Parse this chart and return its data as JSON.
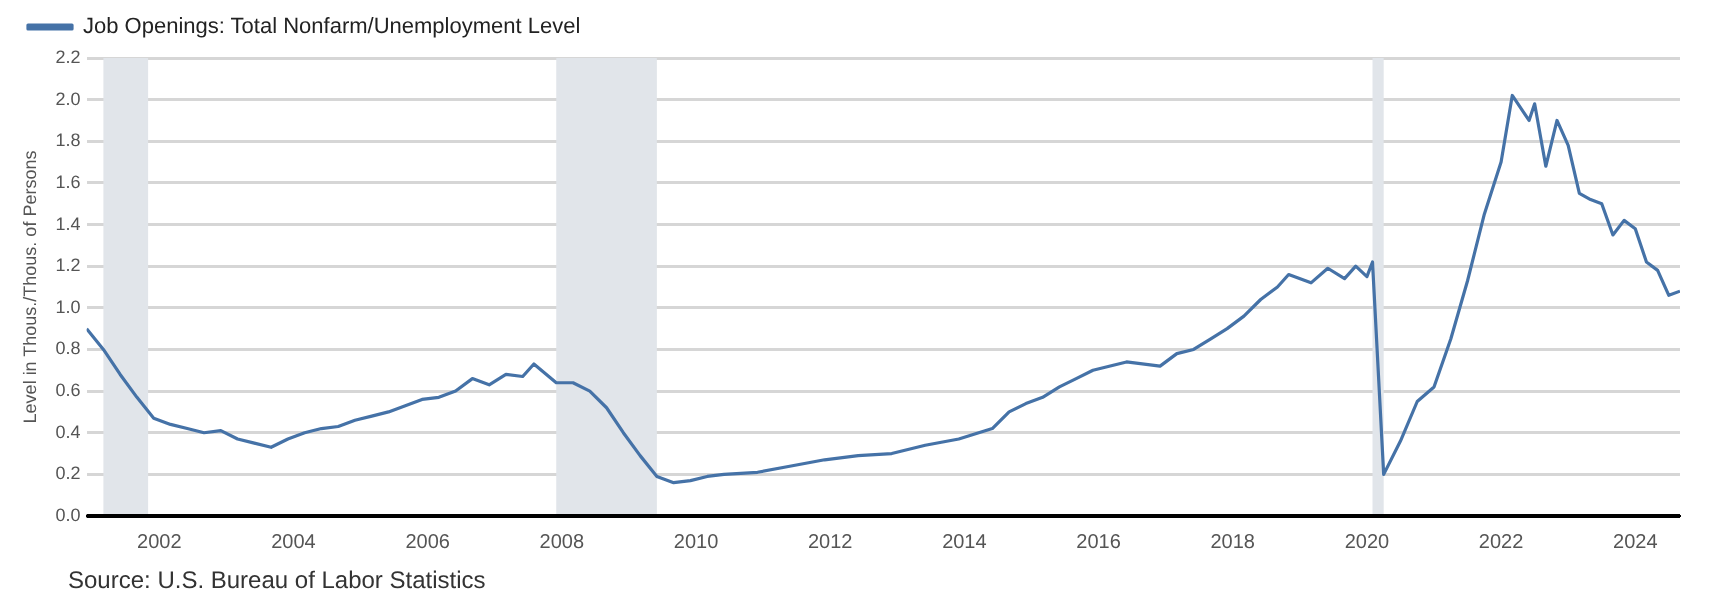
{
  "chart_data": {
    "type": "line",
    "ylabel": "Level in Thous./Thous. of Persons",
    "x": [
      "2000-12",
      "2001-03",
      "2001-06",
      "2001-09",
      "2001-12",
      "2002-03",
      "2002-06",
      "2002-09",
      "2002-12",
      "2003-03",
      "2003-06",
      "2003-09",
      "2003-12",
      "2004-03",
      "2004-06",
      "2004-09",
      "2004-12",
      "2005-03",
      "2005-06",
      "2005-09",
      "2005-12",
      "2006-03",
      "2006-06",
      "2006-09",
      "2006-12",
      "2007-03",
      "2007-06",
      "2007-08",
      "2007-12",
      "2008-03",
      "2008-06",
      "2008-09",
      "2008-12",
      "2009-03",
      "2009-06",
      "2009-09",
      "2009-12",
      "2010-03",
      "2010-06",
      "2010-12",
      "2011-06",
      "2011-12",
      "2012-06",
      "2012-12",
      "2013-06",
      "2013-12",
      "2014-06",
      "2014-09",
      "2014-12",
      "2015-03",
      "2015-06",
      "2015-09",
      "2015-12",
      "2016-06",
      "2016-12",
      "2017-03",
      "2017-06",
      "2017-09",
      "2017-12",
      "2018-03",
      "2018-06",
      "2018-09",
      "2018-11",
      "2019-03",
      "2019-06",
      "2019-09",
      "2019-11",
      "2020-01",
      "2020-02",
      "2020-04",
      "2020-07",
      "2020-10",
      "2021-01",
      "2021-04",
      "2021-07",
      "2021-10",
      "2022-01",
      "2022-03",
      "2022-06",
      "2022-07",
      "2022-09",
      "2022-11",
      "2023-01",
      "2023-03",
      "2023-05",
      "2023-07",
      "2023-09",
      "2023-11",
      "2024-01",
      "2024-03",
      "2024-05",
      "2024-07",
      "2024-09"
    ],
    "series": [
      {
        "name": "Job Openings: Total Nonfarm/Unemployment Level",
        "color": "#4572a7",
        "values": [
          0.9,
          0.8,
          0.68,
          0.57,
          0.47,
          0.44,
          0.42,
          0.4,
          0.41,
          0.37,
          0.35,
          0.33,
          0.37,
          0.4,
          0.42,
          0.43,
          0.46,
          0.48,
          0.5,
          0.53,
          0.56,
          0.57,
          0.6,
          0.66,
          0.63,
          0.68,
          0.67,
          0.73,
          0.64,
          0.64,
          0.6,
          0.52,
          0.4,
          0.29,
          0.19,
          0.16,
          0.17,
          0.19,
          0.2,
          0.21,
          0.24,
          0.27,
          0.29,
          0.3,
          0.34,
          0.37,
          0.42,
          0.5,
          0.54,
          0.57,
          0.62,
          0.66,
          0.7,
          0.74,
          0.72,
          0.78,
          0.8,
          0.85,
          0.9,
          0.96,
          1.04,
          1.1,
          1.16,
          1.12,
          1.19,
          1.14,
          1.2,
          1.15,
          1.22,
          0.2,
          0.36,
          0.55,
          0.62,
          0.85,
          1.13,
          1.45,
          1.7,
          2.02,
          1.9,
          1.98,
          1.68,
          1.9,
          1.78,
          1.55,
          1.52,
          1.5,
          1.35,
          1.42,
          1.38,
          1.22,
          1.18,
          1.06,
          1.08
        ]
      }
    ],
    "xlim": [
      "2000-12",
      "2024-09"
    ],
    "xticks": [
      "2002",
      "2004",
      "2006",
      "2008",
      "2010",
      "2012",
      "2014",
      "2016",
      "2018",
      "2020",
      "2022",
      "2024"
    ],
    "ylim": [
      0,
      2.2
    ],
    "yticks": [
      {
        "value": 0,
        "label": "0.0"
      },
      {
        "value": 0.2,
        "label": "0.2"
      },
      {
        "value": 0.4,
        "label": "0.4"
      },
      {
        "value": 0.6,
        "label": "0.6"
      },
      {
        "value": 0.8,
        "label": "0.8"
      },
      {
        "value": 1.0,
        "label": "1.0"
      },
      {
        "value": 1.2,
        "label": "1.2"
      },
      {
        "value": 1.4,
        "label": "1.4"
      },
      {
        "value": 1.6,
        "label": "1.6"
      },
      {
        "value": 1.8,
        "label": "1.8"
      },
      {
        "value": 2.0,
        "label": "2.0"
      },
      {
        "value": 2.2,
        "label": "2.2"
      }
    ],
    "bands": [
      {
        "axis": "x",
        "from": "2001-03",
        "to": "2001-11",
        "color": "#e1e5ea"
      },
      {
        "axis": "x",
        "from": "2007-12",
        "to": "2009-06",
        "color": "#e1e5ea"
      },
      {
        "axis": "x",
        "from": "2020-02",
        "to": "2020-04",
        "color": "#e1e5ea"
      }
    ],
    "grid": "y",
    "legend": "top left",
    "marker": "none",
    "line_style": "solid",
    "annotations": [
      "Source: U.S. Bureau of Labor Statistics"
    ]
  }
}
